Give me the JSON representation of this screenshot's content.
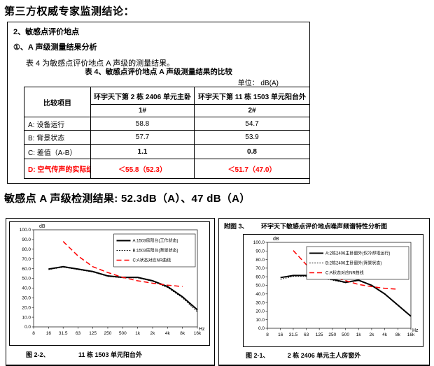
{
  "page": {
    "title": "第三方权威专家监测结论："
  },
  "colors": {
    "highlight_red": "#ff0000",
    "line_black": "#000000"
  },
  "report_box": {
    "line1": "2、敏感点评价地点",
    "line2": "①、A 声级测量结果分析",
    "line3": "表 4 为敏感点评价地点 A 声级的测量结果。",
    "table_caption": "表 4、敏感点评价地点 A 声级测量结果的比较",
    "unit_label": "单位：  dB(A)",
    "table": {
      "header_item": "比较项目",
      "col1_location": "环宇天下第 2 栋 2406 单元主卧",
      "col2_location": "环宇天下第 11 栋 1503 单元阳台外",
      "col1_id": "1#",
      "col2_id": "2#",
      "rows": [
        {
          "label": "A: 设备运行",
          "v1": "58.8",
          "v2": "54.7"
        },
        {
          "label": "B: 背景状态",
          "v1": "57.7",
          "v2": "53.9"
        },
        {
          "label": "C: 差值（A-B）",
          "v1": "1.1",
          "v2": "0.8"
        },
        {
          "label": "D: 空气传声的实际结果",
          "v1": "＜55.8（52.3）",
          "v2": "＜51.7（47.0）"
        }
      ]
    }
  },
  "result_line": "敏感点 A 声级检测结果: 52.3dB（A）、47 dB（A）",
  "chart_data": [
    {
      "type": "line",
      "panel": "left",
      "figure_label": "图 2-2、",
      "caption": "11 栋 1503 单元阳台外",
      "ylabel": "dB",
      "xlabel": "Hz",
      "ylim": [
        0,
        100
      ],
      "ytick_step": 10,
      "grid": false,
      "legend_position": "top-right",
      "categories": [
        "8",
        "16",
        "31.5",
        "63",
        "125",
        "250",
        "500",
        "1k",
        "2k",
        "4k",
        "8k",
        "16k"
      ],
      "frequencies": [
        8,
        16,
        31.5,
        63,
        125,
        250,
        500,
        1000,
        2000,
        4000,
        8000,
        16000
      ],
      "series": [
        {
          "name": "A:1503房阳台(工作状态)",
          "style": "solid",
          "color": "#000000",
          "width": 2,
          "x": [
            16,
            31.5,
            63,
            125,
            250,
            500,
            1000,
            2000,
            4000,
            8000,
            16000
          ],
          "values": [
            59.5,
            62,
            59.5,
            57,
            52.5,
            51,
            51,
            47.5,
            41.5,
            31,
            17.5
          ]
        },
        {
          "name": "B:1503房阳台(背景状态)",
          "style": "dotted",
          "color": "#000000",
          "width": 1,
          "x": [
            16,
            31.5,
            63,
            125,
            250,
            500,
            1000,
            2000,
            4000,
            8000,
            16000
          ],
          "values": [
            59,
            61.5,
            59,
            56.5,
            52,
            50.5,
            50.5,
            47,
            40.5,
            30,
            15.5
          ]
        },
        {
          "name": "C:A状态对应NR曲线",
          "style": "dashed",
          "color": "#ff0000",
          "width": 1.5,
          "x": [
            31.5,
            63,
            125,
            250,
            500,
            1000,
            2000,
            4000,
            8000
          ],
          "values": [
            88,
            73,
            62,
            56,
            51,
            47.5,
            45,
            43,
            41.5
          ]
        }
      ]
    },
    {
      "type": "line",
      "panel": "right",
      "header_label": "附图 3、",
      "title": "环宇天下敏感点评价地点噪声频谱特性分析图",
      "figure_label": "图 2-1、",
      "caption": "2 栋 2406 单元主人房窗外",
      "ylabel": "dB",
      "xlabel": "Hz",
      "ylim": [
        0,
        100
      ],
      "ytick_step": 10,
      "grid": false,
      "legend_position": "top-right",
      "categories": [
        "8",
        "16",
        "31.5",
        "63",
        "125",
        "250",
        "500",
        "1k",
        "2k",
        "4k",
        "8k",
        "16k"
      ],
      "frequencies": [
        8,
        16,
        31.5,
        63,
        125,
        250,
        500,
        1000,
        2000,
        4000,
        8000,
        16000
      ],
      "series": [
        {
          "name": "A:2栋2406主卧窗外(仅冷却塔运行)",
          "style": "solid",
          "color": "#000000",
          "width": 2,
          "x": [
            16,
            31.5,
            63,
            125,
            250,
            500,
            1000,
            2000,
            4000,
            8000,
            16000
          ],
          "values": [
            59,
            61.5,
            61.5,
            60,
            57,
            53.5,
            56,
            50,
            40,
            27,
            14
          ]
        },
        {
          "name": "B:2栋2406主卧窗外(背景状态)",
          "style": "dotted",
          "color": "#000000",
          "width": 1,
          "x": [
            16,
            31.5,
            63,
            125,
            250,
            500,
            1000,
            2000,
            4000,
            8000,
            16000
          ],
          "values": [
            57,
            60.5,
            60.5,
            59,
            56,
            53,
            55.5,
            49.5,
            39.5,
            26.5,
            13.5
          ]
        },
        {
          "name": "C:A状态对应NR曲线",
          "style": "dashed",
          "color": "#ff0000",
          "width": 1.5,
          "x": [
            31.5,
            63,
            125,
            250,
            500,
            1000,
            2000,
            4000,
            8000
          ],
          "values": [
            90.5,
            74,
            65.5,
            60,
            55.5,
            51,
            48.5,
            46.5,
            45.5
          ]
        }
      ]
    }
  ]
}
